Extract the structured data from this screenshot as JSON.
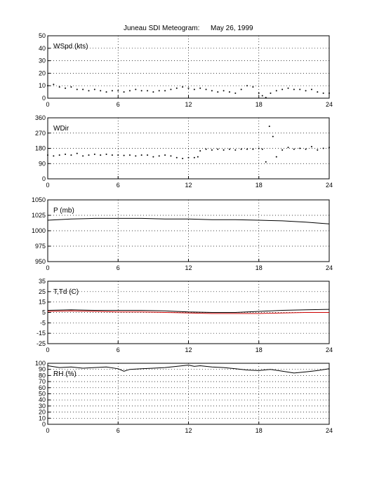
{
  "figure": {
    "title_name": "Juneau SDI Meteogram:",
    "title_date": "May 26, 1999"
  },
  "chart_data": [
    {
      "type": "scatter",
      "label": "WSpd (kts)",
      "x_ticks": [
        0,
        6,
        12,
        18,
        24
      ],
      "xlim": [
        0,
        24
      ],
      "ylim": [
        0,
        50
      ],
      "y_ticks": [
        0,
        10,
        20,
        30,
        40,
        50
      ],
      "grid": true,
      "series": [
        {
          "color": "#000000",
          "style": "dots",
          "x": [
            0,
            0.5,
            1,
            1.5,
            2,
            2.5,
            3,
            3.5,
            4,
            4.5,
            5,
            5.5,
            6,
            6.5,
            7,
            7.5,
            8,
            8.5,
            9,
            9.5,
            10,
            10.5,
            11,
            11.5,
            12,
            12.5,
            13,
            13.5,
            14,
            14.5,
            15,
            15.5,
            16,
            16.5,
            17,
            17.5,
            18,
            18.3,
            18.6,
            19,
            19.5,
            20,
            20.5,
            21,
            21.5,
            22,
            22.5,
            23,
            23.5,
            24
          ],
          "y": [
            10,
            11,
            9,
            8,
            9,
            7,
            7,
            6,
            7,
            6,
            5,
            6,
            6,
            5,
            6,
            7,
            6,
            6,
            5,
            6,
            6,
            7,
            8,
            9,
            8,
            7,
            8,
            7,
            6,
            5,
            6,
            5,
            4,
            7,
            10,
            9,
            4,
            2,
            0.5,
            4,
            6,
            7,
            8,
            7,
            7,
            6,
            7,
            5,
            4,
            4
          ]
        }
      ]
    },
    {
      "type": "scatter",
      "label": "WDir",
      "x_ticks": [
        0,
        6,
        12,
        18,
        24
      ],
      "xlim": [
        0,
        24
      ],
      "ylim": [
        0,
        360
      ],
      "y_ticks": [
        0,
        90,
        180,
        270,
        360
      ],
      "grid": true,
      "series": [
        {
          "color": "#000000",
          "style": "dots",
          "x": [
            0,
            0.5,
            1,
            1.5,
            2,
            2.5,
            3,
            3.5,
            4,
            4.5,
            5,
            5.5,
            6,
            6.5,
            7,
            7.5,
            8,
            8.5,
            9,
            9.5,
            10,
            10.5,
            11,
            11.5,
            12,
            12.5,
            12.8,
            13,
            13.5,
            14,
            14.5,
            15,
            15.5,
            16,
            16.5,
            17,
            17.5,
            18,
            18.3,
            18.6,
            18.9,
            19.2,
            19.5,
            20,
            20.5,
            21,
            21.5,
            22,
            22.5,
            23,
            23.5,
            24
          ],
          "y": [
            140,
            135,
            140,
            145,
            140,
            150,
            135,
            140,
            145,
            140,
            145,
            140,
            140,
            138,
            140,
            135,
            140,
            140,
            130,
            135,
            140,
            135,
            125,
            120,
            125,
            125,
            130,
            165,
            175,
            170,
            175,
            170,
            175,
            170,
            175,
            175,
            175,
            180,
            175,
            100,
            310,
            250,
            130,
            170,
            185,
            175,
            180,
            175,
            190,
            170,
            180,
            185
          ]
        }
      ]
    },
    {
      "type": "line",
      "label": "P (mb)",
      "x_ticks": [
        0,
        6,
        12,
        18,
        24
      ],
      "xlim": [
        0,
        24
      ],
      "ylim": [
        950,
        1050
      ],
      "y_ticks": [
        950,
        975,
        1000,
        1025,
        1050
      ],
      "grid": true,
      "series": [
        {
          "color": "#000000",
          "style": "line",
          "x": [
            0,
            2,
            4,
            6,
            8,
            10,
            12,
            14,
            16,
            18,
            20,
            22,
            24
          ],
          "y": [
            1017,
            1019,
            1020,
            1020,
            1020,
            1019,
            1019,
            1018,
            1018,
            1017,
            1016,
            1014,
            1011
          ]
        }
      ]
    },
    {
      "type": "line",
      "label": "T,Td (C)",
      "x_ticks": [
        0,
        6,
        12,
        18,
        24
      ],
      "xlim": [
        0,
        24
      ],
      "ylim": [
        -25,
        35
      ],
      "y_ticks": [
        -25,
        -15,
        -5,
        5,
        15,
        25,
        35
      ],
      "grid": true,
      "series": [
        {
          "color": "#000000",
          "style": "line",
          "x": [
            0,
            2,
            4,
            6,
            8,
            10,
            12,
            14,
            16,
            18,
            20,
            22,
            24
          ],
          "y": [
            7,
            7.5,
            7,
            7,
            7,
            6.5,
            5.5,
            5,
            5,
            6,
            7,
            7.5,
            8
          ]
        },
        {
          "color": "#cc0000",
          "style": "line",
          "x": [
            0,
            2,
            4,
            6,
            8,
            10,
            12,
            14,
            16,
            18,
            20,
            22,
            24
          ],
          "y": [
            6,
            6.5,
            6,
            5.5,
            5.5,
            5,
            4.5,
            4,
            4,
            4,
            4.5,
            5,
            5
          ]
        }
      ]
    },
    {
      "type": "line",
      "label": "RH (%)",
      "x_ticks": [
        0,
        6,
        12,
        18,
        24
      ],
      "xlim": [
        0,
        24
      ],
      "ylim": [
        0,
        100
      ],
      "y_ticks": [
        0,
        10,
        20,
        30,
        40,
        50,
        60,
        70,
        80,
        90,
        100
      ],
      "grid": true,
      "series": [
        {
          "color": "#000000",
          "style": "line",
          "x": [
            0,
            1,
            2,
            3,
            4,
            5,
            6,
            6.5,
            7,
            8,
            9,
            10,
            11,
            12,
            12.5,
            13,
            14,
            15,
            16,
            17,
            18,
            19,
            20,
            21,
            22,
            23,
            24
          ],
          "y": [
            96,
            93,
            94,
            92,
            93,
            94,
            91,
            87,
            90,
            91,
            92,
            93,
            95,
            97,
            95,
            96,
            94,
            93,
            91,
            89,
            88,
            90,
            87,
            84,
            86,
            88,
            91
          ]
        }
      ]
    }
  ]
}
